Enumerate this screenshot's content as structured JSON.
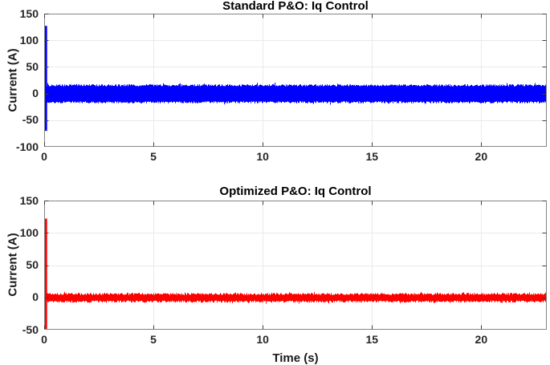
{
  "figure": {
    "background": "#ffffff"
  },
  "style": {
    "axis_box_color": "#848484",
    "tick_mark_color": "#3f3f3f",
    "grid_color": "#e9e9e9",
    "tick_label_color": "#262626",
    "title_color": "#000000"
  },
  "chart_data": [
    {
      "type": "line",
      "title": "Standard P&O: Iq Control",
      "xlabel": "",
      "ylabel": "Current (A)",
      "xlim": [
        0,
        23
      ],
      "ylim": [
        -100,
        150
      ],
      "xticks": [
        0,
        5,
        10,
        15,
        20
      ],
      "yticks": [
        -100,
        -50,
        0,
        50,
        100,
        150
      ],
      "grid": true,
      "legend": null,
      "series": [
        {
          "name": "Iq standard P&O",
          "color": "#0000ff",
          "description": "high-frequency ripple around 0 A for full duration",
          "steady_band": [
            -16,
            15
          ],
          "transient": {
            "time": 0.08,
            "peak": 127,
            "trough": -70
          }
        }
      ]
    },
    {
      "type": "line",
      "title": "Optimized P&O: Iq Control",
      "xlabel": "Time (s)",
      "ylabel": "Current (A)",
      "xlim": [
        0,
        23
      ],
      "ylim": [
        -50,
        150
      ],
      "xticks": [
        0,
        5,
        10,
        15,
        20
      ],
      "yticks": [
        -50,
        0,
        50,
        100,
        150
      ],
      "grid": true,
      "legend": null,
      "series": [
        {
          "name": "Iq optimized P&O",
          "color": "#ff0000",
          "description": "small ripple around 0 A for full duration",
          "steady_band": [
            -6,
            5
          ],
          "transient": {
            "time": 0.08,
            "peak": 122,
            "trough": -50
          }
        }
      ]
    }
  ]
}
